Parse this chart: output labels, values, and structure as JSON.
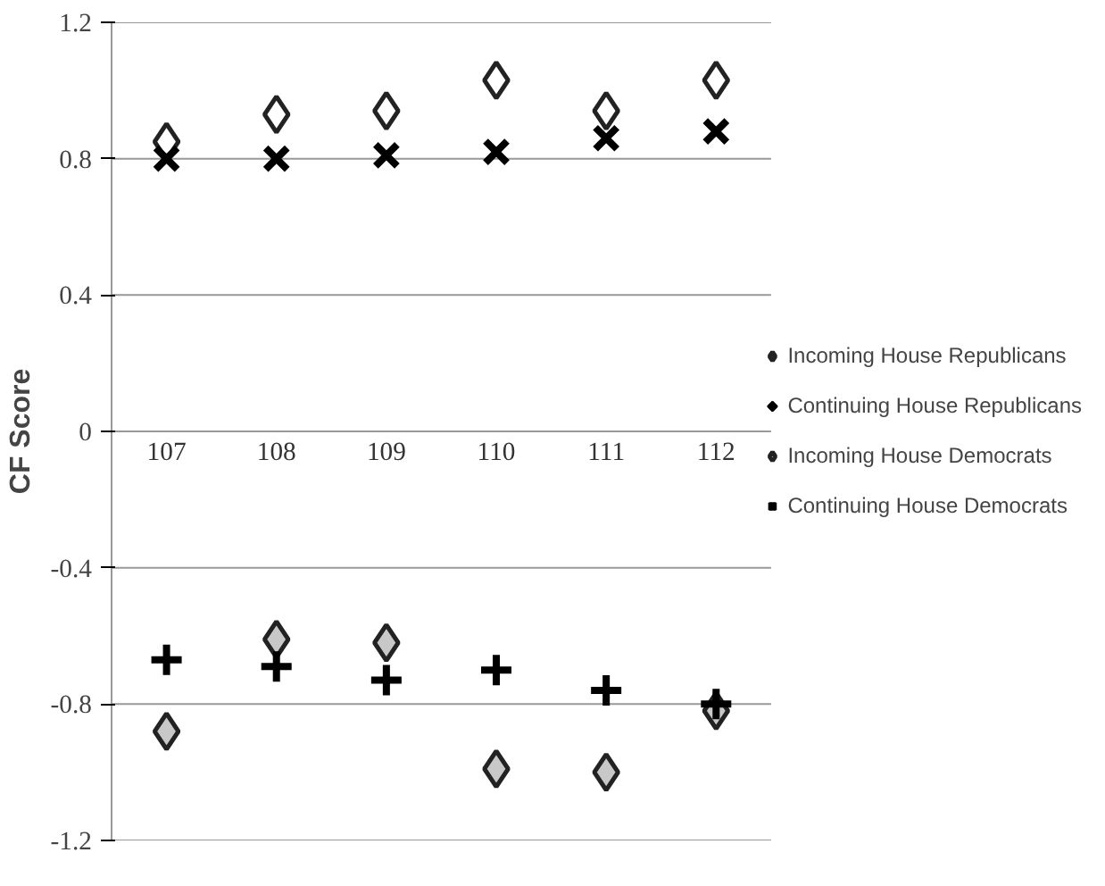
{
  "chart_data": {
    "type": "scatter",
    "ylabel": "CF Score",
    "categories": [
      "107",
      "108",
      "109",
      "110",
      "111",
      "112"
    ],
    "ylim": [
      -1.2,
      1.2
    ],
    "yticks": [
      -1.2,
      -0.8,
      -0.4,
      0,
      0.4,
      0.8,
      1.2
    ],
    "grid": "y",
    "legend": "right",
    "series": [
      {
        "name": "Incoming House Republicans",
        "color": "#ffffff",
        "marker": "diamond",
        "values": [
          0.85,
          0.93,
          0.94,
          1.03,
          0.94,
          1.03
        ]
      },
      {
        "name": "Continuing House Republicans",
        "color": "#000000",
        "marker": "x",
        "values": [
          0.8,
          0.8,
          0.81,
          0.82,
          0.86,
          0.88
        ]
      },
      {
        "name": "Incoming House Democrats",
        "color": "#c8c8c8",
        "marker": "diamond",
        "values": [
          -0.88,
          -0.61,
          -0.62,
          -0.99,
          -1.0,
          -0.82
        ]
      },
      {
        "name": "Continuing House Democrats",
        "color": "#000000",
        "marker": "cross",
        "values": [
          -0.67,
          -0.69,
          -0.73,
          -0.7,
          -0.76,
          -0.8
        ]
      }
    ]
  }
}
